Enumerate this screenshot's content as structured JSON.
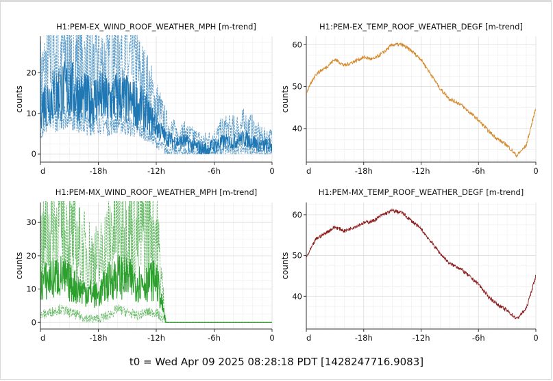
{
  "footer": "t0 = Wed Apr 09 2025 08:28:18 PDT [1428247716.9083]",
  "chart_data": [
    {
      "type": "line",
      "title": "H1:PEM-EX_WIND_ROOF_WEATHER_MPH [m-trend]",
      "ylabel": "counts",
      "x_ticks": [
        "d",
        "-18h",
        "-12h",
        "-6h",
        "0"
      ],
      "xlim": [
        -24,
        0
      ],
      "y_ticks": [
        0,
        10,
        20
      ],
      "ylim": [
        -2,
        29
      ],
      "color": "#1f77b4",
      "band": true,
      "grid": true,
      "x": [
        -24,
        -23,
        -22,
        -21,
        -20,
        -19,
        -18,
        -17,
        -16,
        -15,
        -14,
        -13,
        -12,
        -11,
        -10,
        -9,
        -8,
        -7,
        -6,
        -5,
        -4,
        -3,
        -2,
        -1,
        0
      ],
      "series": [
        {
          "values": [
            12,
            14,
            15,
            16,
            14,
            13,
            14,
            13,
            14,
            13,
            12,
            10,
            7,
            4,
            3,
            3,
            2,
            1,
            2,
            3,
            3,
            4,
            3,
            2,
            2
          ]
        },
        {
          "values": [
            18,
            22,
            24,
            26,
            22,
            20,
            22,
            21,
            25,
            22,
            20,
            16,
            12,
            7,
            5,
            5,
            4,
            3,
            4,
            6,
            6,
            7,
            6,
            4,
            4
          ]
        },
        {
          "values": [
            6,
            8,
            9,
            10,
            8,
            7,
            8,
            7,
            8,
            7,
            6,
            5,
            3,
            1,
            0.5,
            0.5,
            0.3,
            0.2,
            0.5,
            1,
            1,
            1.5,
            1,
            0.5,
            0.5
          ]
        }
      ]
    },
    {
      "type": "line",
      "title": "H1:PEM-EX_TEMP_ROOF_WEATHER_DEGF [m-trend]",
      "ylabel": "counts",
      "x_ticks": [
        "d",
        "-18h",
        "-12h",
        "-6h",
        "0"
      ],
      "xlim": [
        -24,
        0
      ],
      "y_ticks": [
        40,
        50,
        60
      ],
      "ylim": [
        32,
        62
      ],
      "color": "#d4882a",
      "band": false,
      "grid": true,
      "x": [
        -24,
        -23,
        -22,
        -21,
        -20,
        -19,
        -18,
        -17,
        -16,
        -15,
        -14,
        -13,
        -12,
        -11,
        -10,
        -9,
        -8,
        -7,
        -6,
        -5,
        -4,
        -3,
        -2,
        -1,
        0
      ],
      "series": [
        {
          "values": [
            48.5,
            53,
            54.5,
            56.5,
            55,
            56,
            57,
            56.5,
            58,
            60,
            60,
            58.5,
            56.5,
            53,
            49.5,
            47,
            46,
            44,
            42,
            39.5,
            37.5,
            36,
            33.5,
            36,
            45
          ]
        }
      ]
    },
    {
      "type": "line",
      "title": "H1:PEM-MX_WIND_ROOF_WEATHER_MPH [m-trend]",
      "ylabel": "counts",
      "x_ticks": [
        "d",
        "-18h",
        "-12h",
        "-6h",
        "0"
      ],
      "xlim": [
        -24,
        0
      ],
      "y_ticks": [
        0,
        10,
        20,
        30
      ],
      "ylim": [
        -2,
        36
      ],
      "color": "#2ca02c",
      "band": true,
      "grid": true,
      "x": [
        -24,
        -23,
        -22,
        -21,
        -20,
        -19,
        -18,
        -17,
        -16,
        -15,
        -14,
        -13,
        -12,
        -11,
        -10,
        -9,
        -8,
        -7,
        -6,
        -5,
        -4,
        -3,
        -2,
        -1,
        0
      ],
      "series": [
        {
          "values": [
            12,
            13,
            14,
            12,
            10,
            9,
            8,
            12,
            14,
            13,
            12,
            12,
            13,
            0,
            0,
            0,
            0,
            0,
            0,
            0,
            0,
            0,
            0,
            0,
            0
          ]
        },
        {
          "values": [
            22,
            28,
            30,
            26,
            22,
            20,
            18,
            24,
            30,
            28,
            26,
            30,
            28,
            0,
            0,
            0,
            0,
            0,
            0,
            0,
            0,
            0,
            0,
            0,
            0
          ]
        },
        {
          "values": [
            2,
            3,
            4,
            3,
            2,
            1,
            1,
            2,
            4,
            3,
            2,
            3,
            3,
            0,
            0,
            0,
            0,
            0,
            0,
            0,
            0,
            0,
            0,
            0,
            0
          ]
        }
      ]
    },
    {
      "type": "line",
      "title": "H1:PEM-MX_TEMP_ROOF_WEATHER_DEGF [m-trend]",
      "ylabel": "counts",
      "x_ticks": [
        "d",
        "-18h",
        "-12h",
        "-6h",
        "0"
      ],
      "xlim": [
        -24,
        0
      ],
      "y_ticks": [
        40,
        50,
        60
      ],
      "ylim": [
        32,
        63
      ],
      "color": "#8b1a1a",
      "band": false,
      "grid": true,
      "x": [
        -24,
        -23,
        -22,
        -21,
        -20,
        -19,
        -18,
        -17,
        -16,
        -15,
        -14,
        -13,
        -12,
        -11,
        -10,
        -9,
        -8,
        -7,
        -6,
        -5,
        -4,
        -3,
        -2,
        -1,
        0
      ],
      "series": [
        {
          "values": [
            49.5,
            54,
            55.5,
            57,
            56,
            57,
            58,
            58.5,
            60,
            61,
            60.5,
            58.5,
            56.5,
            53.5,
            50.5,
            48,
            47,
            45,
            43,
            40,
            38,
            36.5,
            34.5,
            37,
            45
          ]
        }
      ]
    }
  ]
}
